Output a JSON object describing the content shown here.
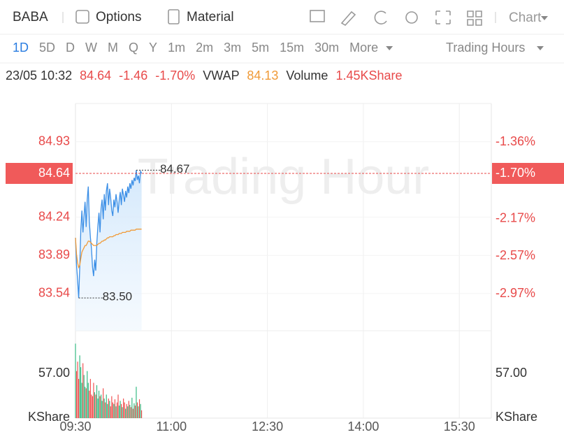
{
  "toolbar": {
    "symbol": "BABA",
    "options": "Options",
    "material": "Material",
    "chart": "Chart"
  },
  "periods": [
    "1D",
    "5D",
    "D",
    "W",
    "M",
    "Q",
    "Y",
    "1m",
    "2m",
    "3m",
    "5m",
    "15m",
    "30m",
    "More"
  ],
  "session": "Trading Hours",
  "info": {
    "time": "23/05 10:32",
    "price": 84.64,
    "change": -1.46,
    "change_pct": {
      "value": -1.7,
      "label": "-1.70%"
    },
    "vwap_label": "VWAP",
    "vwap": 84.13,
    "volume_label": "Volume",
    "volume": "1.45KShare"
  },
  "chart_data": {
    "type": "line",
    "watermark": "Trading Hour",
    "x": [
      "09:30",
      "09:31",
      "09:32",
      "09:33",
      "09:34",
      "09:35",
      "09:36",
      "09:37",
      "09:38",
      "09:39",
      "09:40",
      "09:41",
      "09:42",
      "09:43",
      "09:44",
      "09:45",
      "09:46",
      "09:47",
      "09:48",
      "09:49",
      "09:50",
      "09:51",
      "09:52",
      "09:53",
      "09:54",
      "09:55",
      "09:56",
      "09:57",
      "09:58",
      "09:59",
      "10:00",
      "10:01",
      "10:02",
      "10:03",
      "10:04",
      "10:05",
      "10:06",
      "10:07",
      "10:08",
      "10:09",
      "10:10",
      "10:11",
      "10:12",
      "10:13",
      "10:14",
      "10:15",
      "10:16",
      "10:17",
      "10:18",
      "10:19",
      "10:20",
      "10:21",
      "10:22",
      "10:23",
      "10:24",
      "10:25",
      "10:26",
      "10:27",
      "10:28",
      "10:29",
      "10:30",
      "10:31",
      "10:32"
    ],
    "series": [
      {
        "name": "Price",
        "color": "#3a8ee6",
        "values": [
          84.05,
          83.8,
          83.66,
          83.5,
          83.78,
          84.12,
          84.3,
          84.1,
          84.25,
          84.38,
          84.15,
          84.4,
          84.52,
          84.2,
          84.05,
          83.95,
          83.78,
          83.7,
          83.85,
          83.75,
          84.0,
          84.15,
          84.28,
          84.1,
          84.32,
          84.4,
          84.22,
          84.45,
          84.3,
          84.48,
          84.55,
          84.35,
          84.5,
          84.42,
          84.3,
          84.25,
          84.4,
          84.33,
          84.45,
          84.38,
          84.28,
          84.4,
          84.47,
          84.35,
          84.5,
          84.44,
          84.38,
          84.48,
          84.42,
          84.52,
          84.46,
          84.55,
          84.5,
          84.58,
          84.53,
          84.6,
          84.57,
          84.67,
          84.58,
          84.62,
          84.55,
          84.66,
          84.64
        ]
      },
      {
        "name": "VWAP",
        "color": "#f09a37",
        "values": [
          84.05,
          83.9,
          83.82,
          83.78,
          83.8,
          83.86,
          83.92,
          83.94,
          83.96,
          83.98,
          83.98,
          84.0,
          84.02,
          84.02,
          84.01,
          84.0,
          83.99,
          83.98,
          83.98,
          83.98,
          83.98,
          83.99,
          84.0,
          84.0,
          84.01,
          84.02,
          84.02,
          84.03,
          84.03,
          84.04,
          84.05,
          84.05,
          84.06,
          84.06,
          84.06,
          84.06,
          84.07,
          84.07,
          84.08,
          84.08,
          84.08,
          84.09,
          84.09,
          84.09,
          84.1,
          84.1,
          84.1,
          84.1,
          84.11,
          84.11,
          84.11,
          84.11,
          84.12,
          84.12,
          84.12,
          84.12,
          84.12,
          84.13,
          84.13,
          84.13,
          84.13,
          84.13,
          84.13
        ]
      }
    ],
    "volume": {
      "unit": "KShare",
      "up_color": "#2db87d",
      "down_color": "#f04b4b",
      "values": [
        95,
        60,
        72,
        50,
        80,
        65,
        45,
        70,
        55,
        40,
        38,
        60,
        45,
        35,
        50,
        30,
        28,
        45,
        33,
        30,
        42,
        25,
        35,
        28,
        30,
        22,
        38,
        25,
        20,
        30,
        18,
        25,
        22,
        15,
        28,
        20,
        18,
        24,
        15,
        20,
        30,
        16,
        22,
        18,
        14,
        25,
        20,
        12,
        18,
        15,
        22,
        17,
        14,
        26,
        12,
        19,
        16,
        40,
        20,
        15,
        24,
        18,
        10
      ],
      "ylim": [
        0,
        107
      ],
      "yticks": [
        {
          "value": 57,
          "label": "57.00"
        }
      ]
    },
    "xlim": [
      "09:30",
      "16:00"
    ],
    "xticks": [
      "09:30",
      "11:00",
      "12:30",
      "14:00",
      "15:30"
    ],
    "ylim": [
      83.2,
      85.28
    ],
    "yticks": [
      84.93,
      84.24,
      83.89,
      83.54
    ],
    "y2lim": [
      -3.36,
      -0.95
    ],
    "y2ticks": [
      {
        "value": -1.36,
        "label": "-1.36%"
      },
      {
        "value": -2.17,
        "label": "-2.17%"
      },
      {
        "value": -2.57,
        "label": "-2.57%"
      },
      {
        "value": -2.97,
        "label": "-2.97%"
      }
    ],
    "annotations": [
      {
        "x": "10:27",
        "value": 84.67,
        "label": "84.67"
      },
      {
        "x": "09:33",
        "value": 83.5,
        "label": "83.50"
      }
    ],
    "axis_color": "#e84a4a",
    "grid": true
  }
}
